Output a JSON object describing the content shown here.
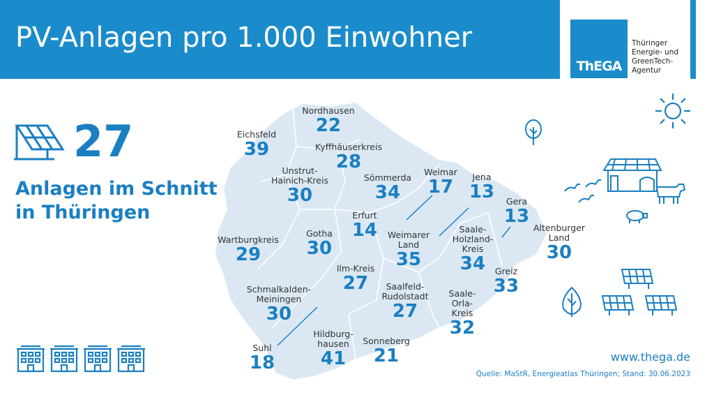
{
  "header": {
    "title": "PV-Anlagen pro 1.000 Einwohner",
    "logo_text": "ThEGA",
    "logo_desc": [
      "Thüringer",
      "Energie- und",
      "GreenTech-",
      "Agentur"
    ]
  },
  "average": {
    "value": "27",
    "text_line1": "Anlagen im Schnitt",
    "text_line2": "in Thüringen"
  },
  "districts": [
    {
      "key": "nordhausen",
      "name": [
        "Nordhausen"
      ],
      "value": "22"
    },
    {
      "key": "eichsfeld",
      "name": [
        "Eichsfeld"
      ],
      "value": "39"
    },
    {
      "key": "kyffhaeuserkreis",
      "name": [
        "Kyffhäuserkreis"
      ],
      "value": "28"
    },
    {
      "key": "unstrut-hainich",
      "name": [
        "Unstrut-",
        "Hainich-Kreis"
      ],
      "value": "30"
    },
    {
      "key": "soemmerda",
      "name": [
        "Sömmerda"
      ],
      "value": "34"
    },
    {
      "key": "weimar",
      "name": [
        "Weimar"
      ],
      "value": "17"
    },
    {
      "key": "jena",
      "name": [
        "Jena"
      ],
      "value": "13"
    },
    {
      "key": "gera",
      "name": [
        "Gera"
      ],
      "value": "13"
    },
    {
      "key": "erfurt",
      "name": [
        "Erfurt"
      ],
      "value": "14"
    },
    {
      "key": "altenburger-land",
      "name": [
        "Altenburger",
        "Land"
      ],
      "value": "30"
    },
    {
      "key": "wartburgkreis",
      "name": [
        "Wartburgkreis"
      ],
      "value": "29"
    },
    {
      "key": "gotha",
      "name": [
        "Gotha"
      ],
      "value": "30"
    },
    {
      "key": "weimarer-land",
      "name": [
        "Weimarer",
        "Land"
      ],
      "value": "35"
    },
    {
      "key": "saale-holzland",
      "name": [
        "Saale-",
        "Holzland-",
        "Kreis"
      ],
      "value": "34"
    },
    {
      "key": "ilm-kreis",
      "name": [
        "Ilm-Kreis"
      ],
      "value": "27"
    },
    {
      "key": "greiz",
      "name": [
        "Greiz"
      ],
      "value": "33"
    },
    {
      "key": "schmalkalden-meiningen",
      "name": [
        "Schmalkalden-",
        "Meiningen"
      ],
      "value": "30"
    },
    {
      "key": "saalfeld-rudolstadt",
      "name": [
        "Saalfeld-",
        "Rudolstadt"
      ],
      "value": "27"
    },
    {
      "key": "saale-orla",
      "name": [
        "Saale-",
        "Orla-",
        "Kreis"
      ],
      "value": "32"
    },
    {
      "key": "suhl",
      "name": [
        "Suhl"
      ],
      "value": "18"
    },
    {
      "key": "hildburghausen",
      "name": [
        "Hildburg-",
        "hausen"
      ],
      "value": "41"
    },
    {
      "key": "sonneberg",
      "name": [
        "Sonneberg"
      ],
      "value": "21"
    }
  ],
  "footer": {
    "website": "www.thega.de",
    "source": "Quelle: MaStR, Energieatlas Thüringen; Stand: 30.06.2023"
  },
  "colors": {
    "primary": "#1a8ccb",
    "text_blue": "#1a7fc1",
    "map_fill": "#dbe8f4"
  },
  "icons": [
    "solar-panel-icon",
    "sun-icon",
    "tree-icon",
    "farm-barn-icon",
    "cow-icon",
    "goose-icon",
    "pig-icon",
    "solar-field-icon",
    "apartment-building-icon"
  ]
}
